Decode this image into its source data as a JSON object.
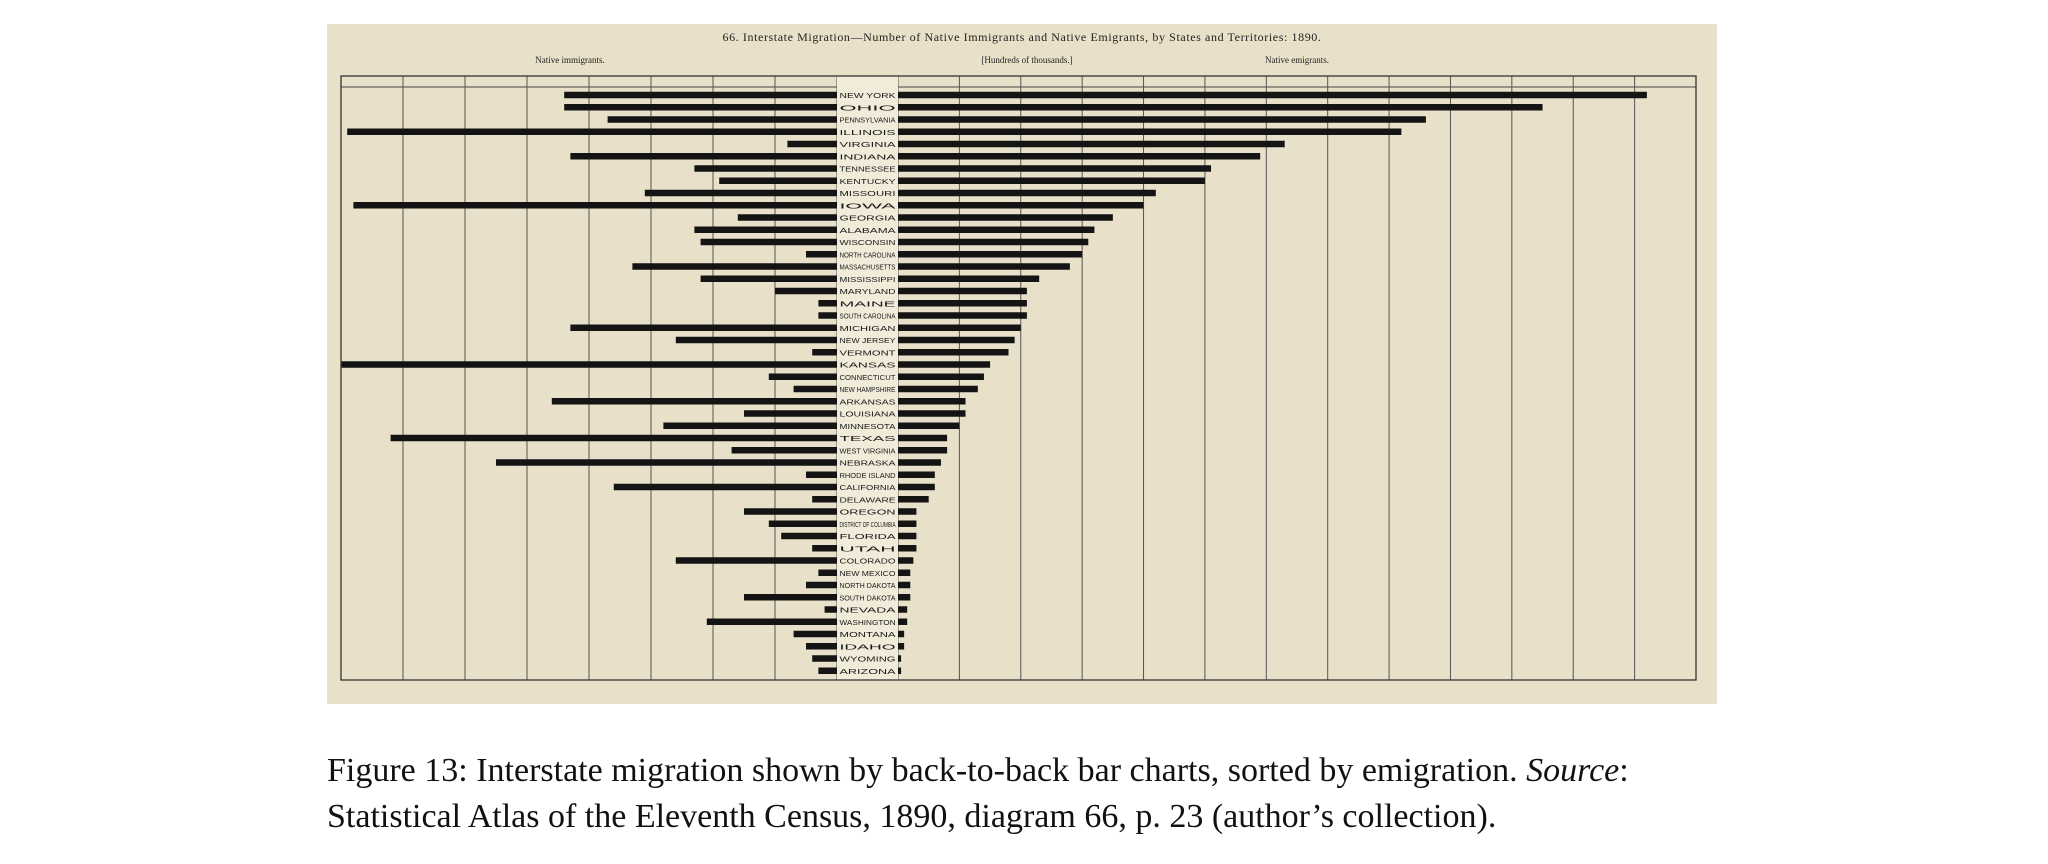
{
  "caption": {
    "line1_prefix": "Figure 13: Interstate migration shown by back-to-back bar charts, sorted by emigration. ",
    "source_word": "Source",
    "line1_suffix": ":",
    "line2": "Statistical Atlas of the Eleventh Census, 1890, diagram 66, p. 23 (author’s collection)."
  },
  "chart_data": {
    "type": "bar",
    "title": "66. Interstate Migration—Number of Native Immigrants and Native Emigrants, by States and Territories: 1890.",
    "units_label": "[Hundreds of thousands.]",
    "left_label": "Native immigrants.",
    "right_label": "Native emigrants.",
    "orientation": "back-to-back horizontal",
    "grid": true,
    "xlim_left": [
      0,
      8
    ],
    "xlim_right": [
      0,
      13
    ],
    "categories": [
      "NEW YORK",
      "OHIO",
      "PENNSYLVANIA",
      "ILLINOIS",
      "VIRGINIA",
      "INDIANA",
      "TENNESSEE",
      "KENTUCKY",
      "MISSOURI",
      "IOWA",
      "GEORGIA",
      "ALABAMA",
      "WISCONSIN",
      "NORTH CAROLINA",
      "MASSACHUSETTS",
      "MISSISSIPPI",
      "MARYLAND",
      "MAINE",
      "SOUTH CAROLINA",
      "MICHIGAN",
      "NEW JERSEY",
      "VERMONT",
      "KANSAS",
      "CONNECTICUT",
      "NEW HAMPSHIRE",
      "ARKANSAS",
      "LOUISIANA",
      "MINNESOTA",
      "TEXAS",
      "WEST VIRGINIA",
      "NEBRASKA",
      "RHODE ISLAND",
      "CALIFORNIA",
      "DELAWARE",
      "OREGON",
      "DISTRICT OF COLUMBIA",
      "FLORIDA",
      "UTAH",
      "COLORADO",
      "NEW MEXICO",
      "NORTH DAKOTA",
      "SOUTH DAKOTA",
      "NEVADA",
      "WASHINGTON",
      "MONTANA",
      "IDAHO",
      "WYOMING",
      "ARIZONA"
    ],
    "series": [
      {
        "name": "Native immigrants.",
        "values": [
          4.4,
          4.4,
          3.7,
          7.9,
          0.8,
          4.3,
          2.3,
          1.9,
          3.1,
          7.8,
          1.6,
          2.3,
          2.2,
          0.5,
          3.3,
          2.2,
          1.0,
          0.3,
          0.3,
          4.3,
          2.6,
          0.4,
          8.0,
          1.1,
          0.7,
          4.6,
          1.5,
          2.8,
          7.2,
          1.7,
          5.5,
          0.5,
          3.6,
          0.4,
          1.5,
          1.1,
          0.9,
          0.4,
          2.6,
          0.3,
          0.5,
          1.5,
          0.2,
          2.1,
          0.7,
          0.5,
          0.4,
          0.3
        ]
      },
      {
        "name": "Native emigrants.",
        "values": [
          12.2,
          10.5,
          8.6,
          8.2,
          6.3,
          5.9,
          5.1,
          5.0,
          4.2,
          4.0,
          3.5,
          3.2,
          3.1,
          3.0,
          2.8,
          2.3,
          2.1,
          2.1,
          2.1,
          2.0,
          1.9,
          1.8,
          1.5,
          1.4,
          1.3,
          1.1,
          1.1,
          1.0,
          0.8,
          0.8,
          0.7,
          0.6,
          0.6,
          0.5,
          0.3,
          0.3,
          0.3,
          0.3,
          0.25,
          0.2,
          0.2,
          0.2,
          0.15,
          0.15,
          0.1,
          0.1,
          0.05,
          0.05
        ]
      }
    ]
  }
}
